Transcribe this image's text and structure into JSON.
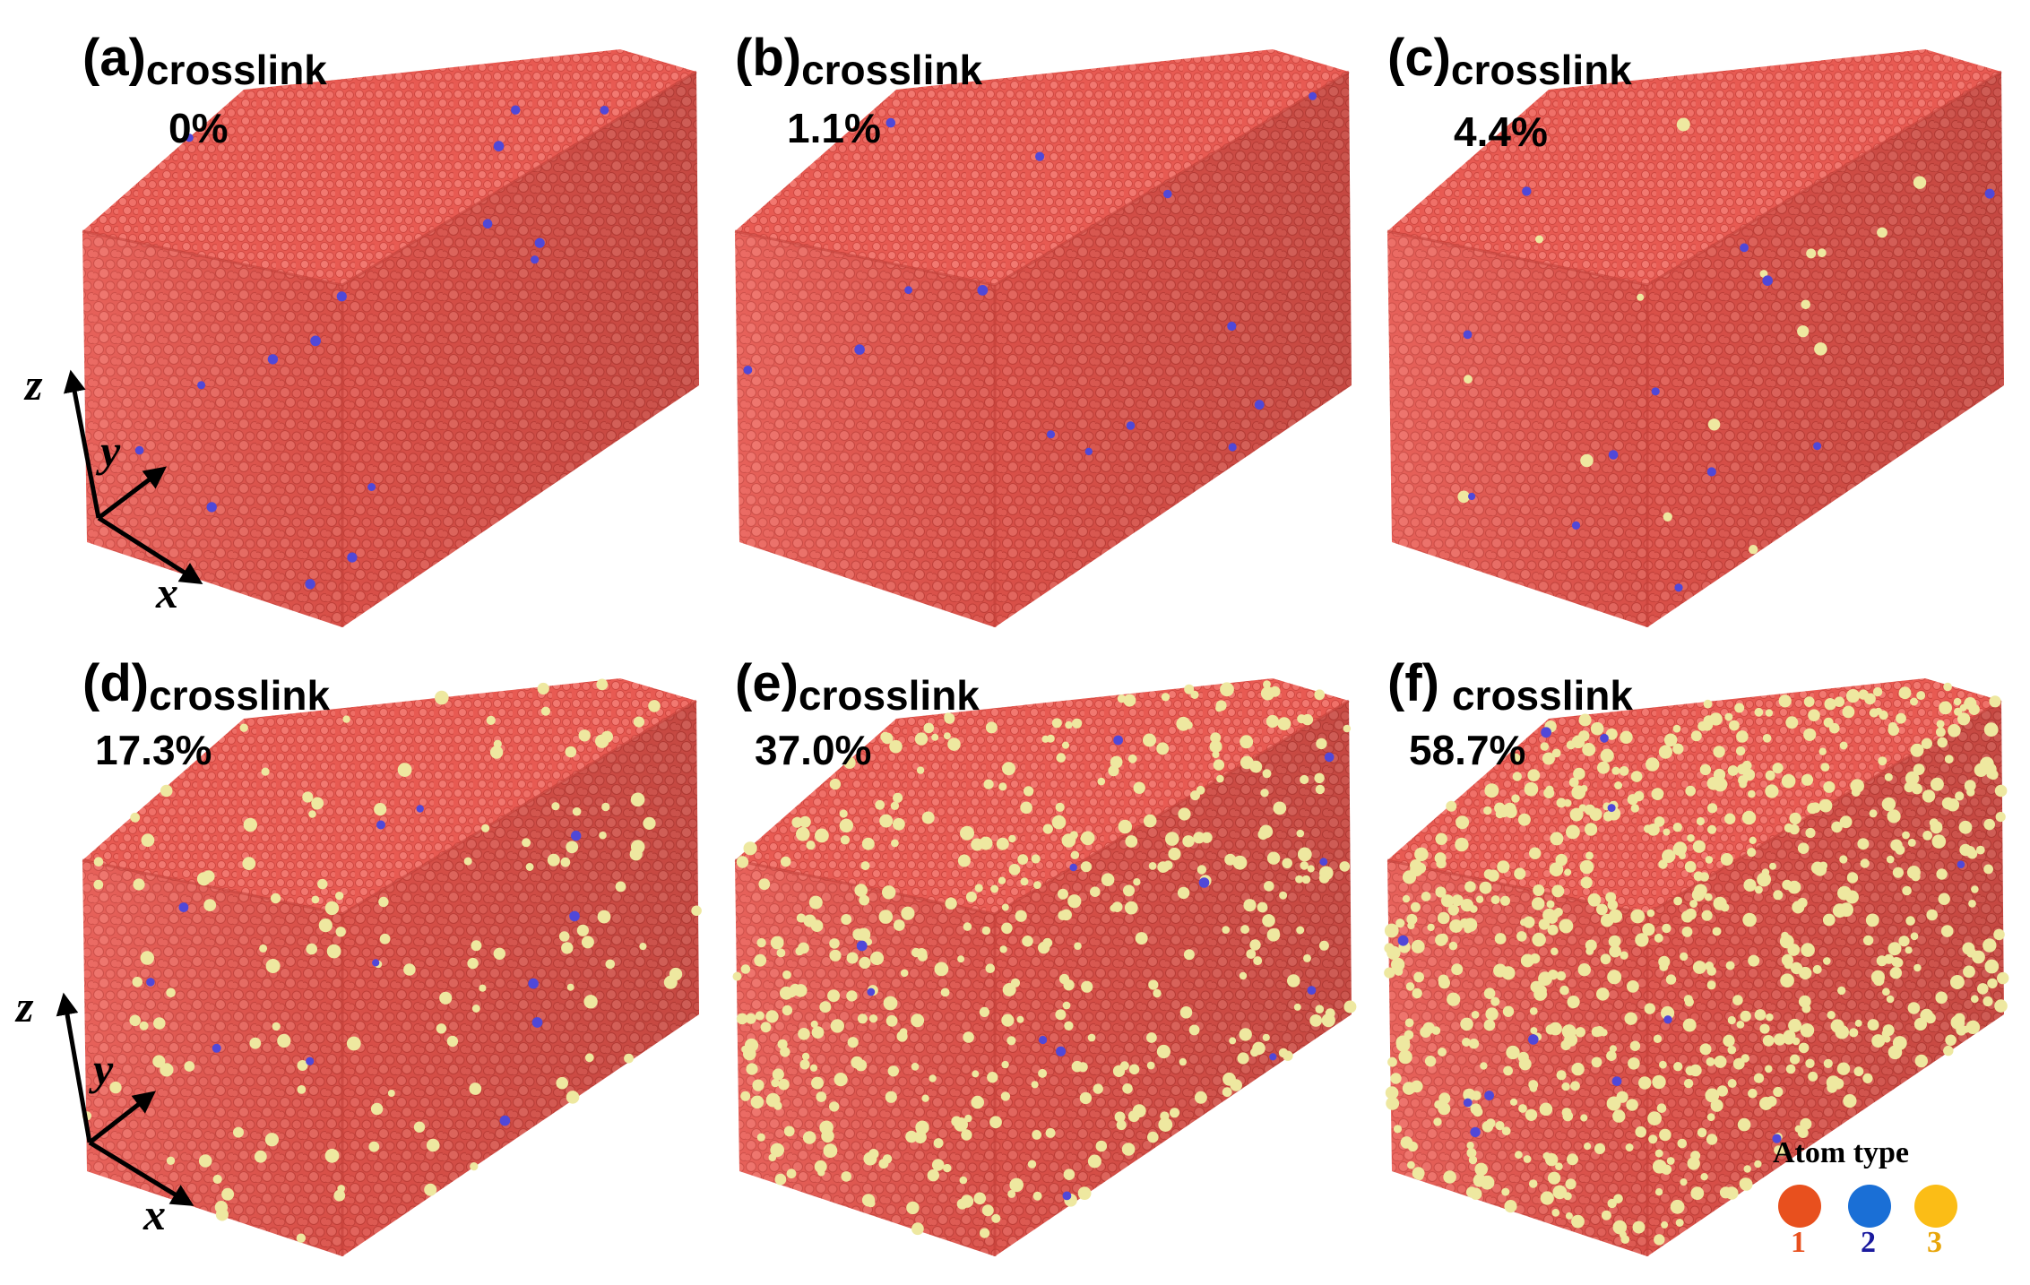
{
  "panels": [
    {
      "letter": "(a)",
      "word": "crosslink",
      "percent": "0%",
      "yellow_fraction": 0.0,
      "blue_fraction": 0.008
    },
    {
      "letter": "(b)",
      "word": "crosslink",
      "percent": "1.1%",
      "yellow_fraction": 0.0,
      "blue_fraction": 0.007
    },
    {
      "letter": "(c)",
      "word": "crosslink",
      "percent": "4.4%",
      "yellow_fraction": 0.012,
      "blue_fraction": 0.006
    },
    {
      "letter": "(d)",
      "word": "crosslink",
      "percent": "17.3%",
      "yellow_fraction": 0.09,
      "blue_fraction": 0.006
    },
    {
      "letter": "(e)",
      "word": "crosslink",
      "percent": "37.0%",
      "yellow_fraction": 0.28,
      "blue_fraction": 0.006
    },
    {
      "letter": "(f)",
      "word": "crosslink",
      "percent": "58.7%",
      "yellow_fraction": 0.48,
      "blue_fraction": 0.006
    }
  ],
  "axes": {
    "z": "z",
    "y": "y",
    "x": "x"
  },
  "legend": {
    "title": "Atom type",
    "items": [
      {
        "label": "1",
        "color": "#e8501e",
        "label_color": "#e8501e"
      },
      {
        "label": "2",
        "color": "#1a6fd6",
        "label_color": "#1a1a9e"
      },
      {
        "label": "3",
        "color": "#fbbd16",
        "label_color": "#e8a60c"
      }
    ]
  },
  "colors": {
    "atom_red": "#e85a52",
    "atom_blue": "#5048d8",
    "atom_yellow": "#eee8a0"
  }
}
